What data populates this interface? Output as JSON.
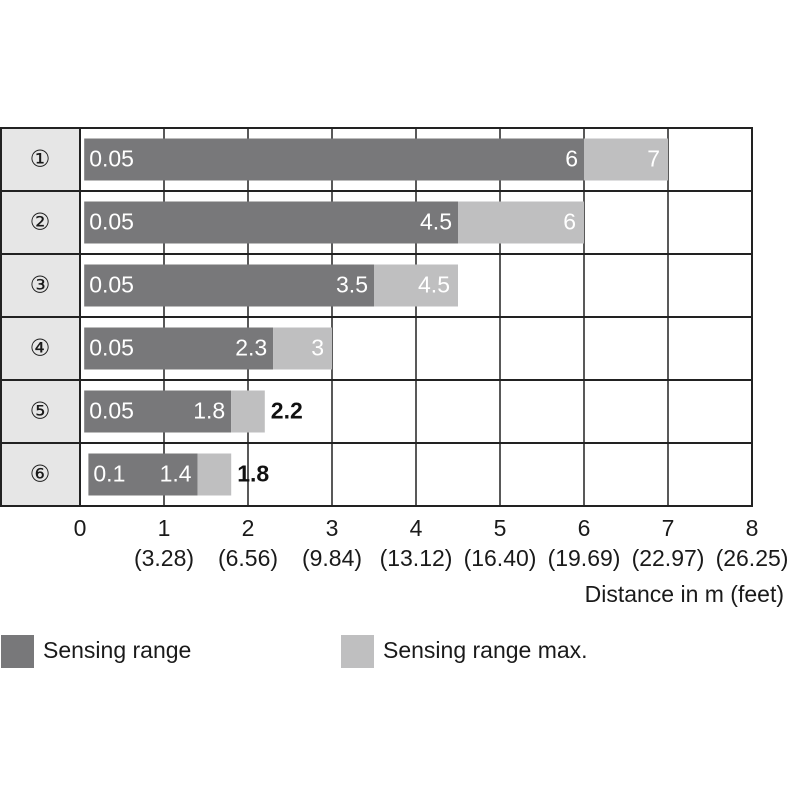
{
  "chart_data": {
    "type": "range-bar",
    "orientation": "horizontal",
    "categories": [
      "①",
      "②",
      "③",
      "④",
      "⑤",
      "⑥"
    ],
    "series": [
      {
        "name": "Sensing range",
        "color": "#78787a",
        "starts": [
          0.05,
          0.05,
          0.05,
          0.05,
          0.05,
          0.1
        ],
        "values": [
          6,
          4.5,
          3.5,
          2.3,
          1.8,
          1.4
        ]
      },
      {
        "name": "Sensing range max.",
        "color": "#bfbfc0",
        "values": [
          7,
          6,
          4.5,
          3,
          2.2,
          1.8
        ]
      }
    ],
    "xlim": [
      0,
      8
    ],
    "xticks": [
      0,
      1,
      2,
      3,
      4,
      5,
      6,
      7,
      8
    ],
    "xtick_feet": [
      null,
      "(3.28)",
      "(6.56)",
      "(9.84)",
      "(13.12)",
      "(16.40)",
      "(19.69)",
      "(22.97)",
      "(26.25)"
    ],
    "xlabel": "Distance in m (feet)",
    "grid": true,
    "legend": "bottom"
  }
}
